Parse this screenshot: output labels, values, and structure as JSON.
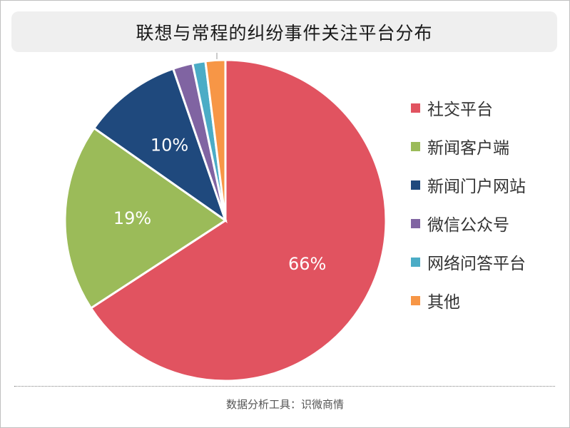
{
  "title": "联想与常程的纠纷事件关注平台分布",
  "source": "数据分析工具：识微商情",
  "chart_data": {
    "type": "pie",
    "title": "联想与常程的纠纷事件关注平台分布",
    "legend_position": "right",
    "slices": [
      {
        "label": "社交平台",
        "value": 66,
        "display": "66%",
        "color": "#e15360"
      },
      {
        "label": "新闻客户端",
        "value": 19,
        "display": "19%",
        "color": "#9bbb59"
      },
      {
        "label": "新闻门户网站",
        "value": 10,
        "display": "10%",
        "color": "#1f497d"
      },
      {
        "label": "微信公众号",
        "value": 2,
        "display": "",
        "color": "#8064a2"
      },
      {
        "label": "网络问答平台",
        "value": 1.3,
        "display": "",
        "color": "#4bacc6"
      },
      {
        "label": "其他",
        "value": 2,
        "display": "",
        "color": "#f79646"
      }
    ]
  }
}
